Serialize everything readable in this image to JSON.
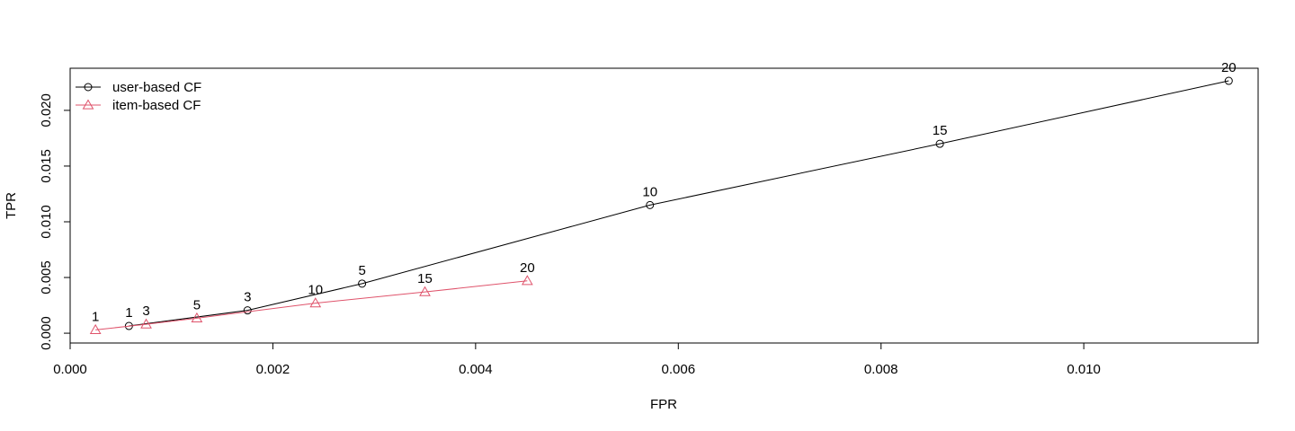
{
  "chart_data": {
    "type": "line",
    "title": "",
    "xlabel": "FPR",
    "ylabel": "TPR",
    "xlim": [
      0.0,
      0.01172
    ],
    "ylim": [
      -0.00088,
      0.02378
    ],
    "x_ticks": [
      0.0,
      0.002,
      0.004,
      0.006,
      0.008,
      0.01
    ],
    "x_tick_labels": [
      "0.000",
      "0.002",
      "0.004",
      "0.006",
      "0.008",
      "0.010"
    ],
    "y_ticks": [
      0.0,
      0.005,
      0.01,
      0.015,
      0.02
    ],
    "y_tick_labels": [
      "0.000",
      "0.005",
      "0.010",
      "0.015",
      "0.020"
    ],
    "grid": false,
    "legend_position": "top-left",
    "series": [
      {
        "name": "user-based CF",
        "color": "#000000",
        "marker": "circle",
        "points": [
          {
            "x": 0.00058,
            "y": 0.00065,
            "label": "1"
          },
          {
            "x": 0.00175,
            "y": 0.00205,
            "label": "3"
          },
          {
            "x": 0.00288,
            "y": 0.00445,
            "label": "5"
          },
          {
            "x": 0.00572,
            "y": 0.0115,
            "label": "10"
          },
          {
            "x": 0.00858,
            "y": 0.017,
            "label": "15"
          },
          {
            "x": 0.01143,
            "y": 0.02265,
            "label": "20"
          }
        ]
      },
      {
        "name": "item-based CF",
        "color": "#DF536B",
        "marker": "triangle",
        "points": [
          {
            "x": 0.00025,
            "y": 0.0003,
            "label": "1"
          },
          {
            "x": 0.00075,
            "y": 0.0008,
            "label": "3"
          },
          {
            "x": 0.00125,
            "y": 0.00135,
            "label": "5"
          },
          {
            "x": 0.00242,
            "y": 0.0027,
            "label": "10"
          },
          {
            "x": 0.0035,
            "y": 0.0037,
            "label": "15"
          },
          {
            "x": 0.00451,
            "y": 0.0047,
            "label": "20"
          }
        ]
      }
    ]
  }
}
